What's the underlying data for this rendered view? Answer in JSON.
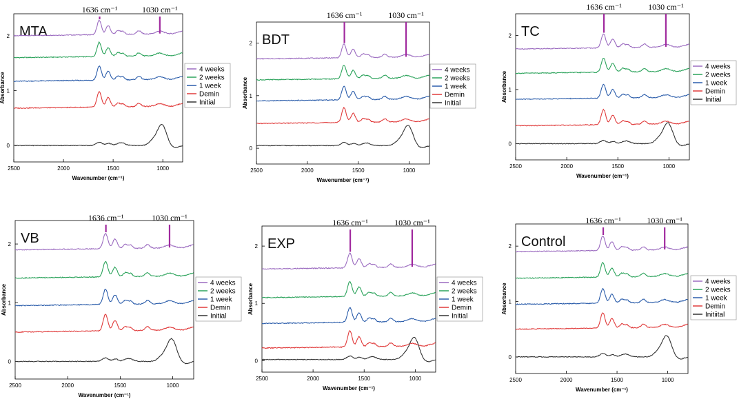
{
  "colors": {
    "purple": "#9b6bc0",
    "green": "#2aa25a",
    "blue": "#2a5caa",
    "red": "#e03a3a",
    "black": "#333333",
    "marker": "#a0299e"
  },
  "axis_label_y": "Absorbance",
  "axis_label_x": "Wavenumber (cm⁻¹)",
  "peak_markers": [
    "1636 cm⁻¹",
    "1030 cm⁻¹"
  ],
  "chart_data": [
    {
      "type": "line",
      "title": "MTA",
      "xlim": [
        2500,
        800
      ],
      "ylim": [
        -0.3,
        2.4
      ],
      "x_ticks": [
        2500,
        2000,
        1500,
        1000
      ],
      "y_ticks": [
        0,
        1,
        2
      ],
      "baselines": {
        "Initial": 0.0,
        "Demin": 0.68,
        "1 week": 1.17,
        "2 weeks": 1.6,
        "4 weeks": 2.0
      },
      "legend": [
        "4 weeks",
        "2 weeks",
        "1 week",
        "Demin",
        "Initial"
      ],
      "markers": [
        {
          "x": 1636,
          "label": "1636 cm⁻¹"
        },
        {
          "x": 1030,
          "label": "1030 cm⁻¹"
        }
      ]
    },
    {
      "type": "line",
      "title": "BDT",
      "xlim": [
        2500,
        800
      ],
      "ylim": [
        -0.3,
        2.4
      ],
      "x_ticks": [
        2500,
        2000,
        1500,
        1000
      ],
      "y_ticks": [
        0,
        1,
        2
      ],
      "baselines": {
        "Initial": 0.05,
        "Demin": 0.47,
        "1 week": 0.9,
        "2 weeks": 1.3,
        "4 weeks": 1.7
      },
      "legend": [
        "4 weeks",
        "2 weeks",
        "1 week",
        "Demin",
        "Initial"
      ],
      "markers": [
        {
          "x": 1636,
          "label": "1636 cm⁻¹"
        },
        {
          "x": 1030,
          "label": "1030 cm⁻¹"
        }
      ]
    },
    {
      "type": "line",
      "title": "TC",
      "xlim": [
        2500,
        800
      ],
      "ylim": [
        -0.3,
        2.4
      ],
      "x_ticks": [
        2500,
        2000,
        1500,
        1000
      ],
      "y_ticks": [
        0,
        1,
        2
      ],
      "baselines": {
        "Initial": 0.0,
        "Demin": 0.33,
        "1 week": 0.82,
        "2 weeks": 1.3,
        "4 weeks": 1.75
      },
      "legend": [
        "4 weeks",
        "2 weeks",
        "1 week",
        "Demin",
        "Initial"
      ],
      "markers": [
        {
          "x": 1636,
          "label": "1636 cm⁻¹"
        },
        {
          "x": 1030,
          "label": "1030 cm⁻¹"
        }
      ]
    },
    {
      "type": "line",
      "title": "VB",
      "xlim": [
        2500,
        800
      ],
      "ylim": [
        -0.3,
        2.4
      ],
      "x_ticks": [
        2500,
        2000,
        1500,
        1000
      ],
      "y_ticks": [
        0,
        1,
        2
      ],
      "baselines": {
        "Initial": 0.0,
        "Demin": 0.5,
        "1 week": 0.95,
        "2 weeks": 1.42,
        "4 weeks": 1.9
      },
      "legend": [
        "4 weeks",
        "2 weeks",
        "1 week",
        "Demin",
        "Initial"
      ],
      "markers": [
        {
          "x": 1636,
          "label": "1636 cm⁻¹"
        },
        {
          "x": 1030,
          "label": "1030 cm⁻¹"
        }
      ]
    },
    {
      "type": "line",
      "title": "EXP",
      "xlim": [
        2500,
        800
      ],
      "ylim": [
        -0.2,
        2.35
      ],
      "x_ticks": [
        2500,
        2000,
        1500,
        1000
      ],
      "y_ticks": [
        0,
        1,
        2
      ],
      "baselines": {
        "Initial": 0.02,
        "Demin": 0.22,
        "1 week": 0.65,
        "2 weeks": 1.1,
        "4 weeks": 1.6
      },
      "legend": [
        "4 weeks",
        "2 weeks",
        "1 week",
        "Demin",
        "Initial"
      ],
      "markers": [
        {
          "x": 1636,
          "label": "1636 cm⁻¹"
        },
        {
          "x": 1030,
          "label": "1030 cm⁻¹"
        }
      ]
    },
    {
      "type": "line",
      "title": "Control",
      "xlim": [
        2500,
        800
      ],
      "ylim": [
        -0.3,
        2.4
      ],
      "x_ticks": [
        2500,
        2000,
        1500,
        1000
      ],
      "y_ticks": [
        0,
        1,
        2
      ],
      "baselines": {
        "Initial": 0.0,
        "Demin": 0.5,
        "1 week": 0.95,
        "2 weeks": 1.42,
        "4 weeks": 1.9
      },
      "legend": [
        "4 weeks",
        "2 weeks",
        "1 week",
        "Demin",
        "Initiital"
      ],
      "markers": [
        {
          "x": 1636,
          "label": "1636 cm⁻¹"
        },
        {
          "x": 1030,
          "label": "1030 cm⁻¹"
        }
      ]
    }
  ]
}
